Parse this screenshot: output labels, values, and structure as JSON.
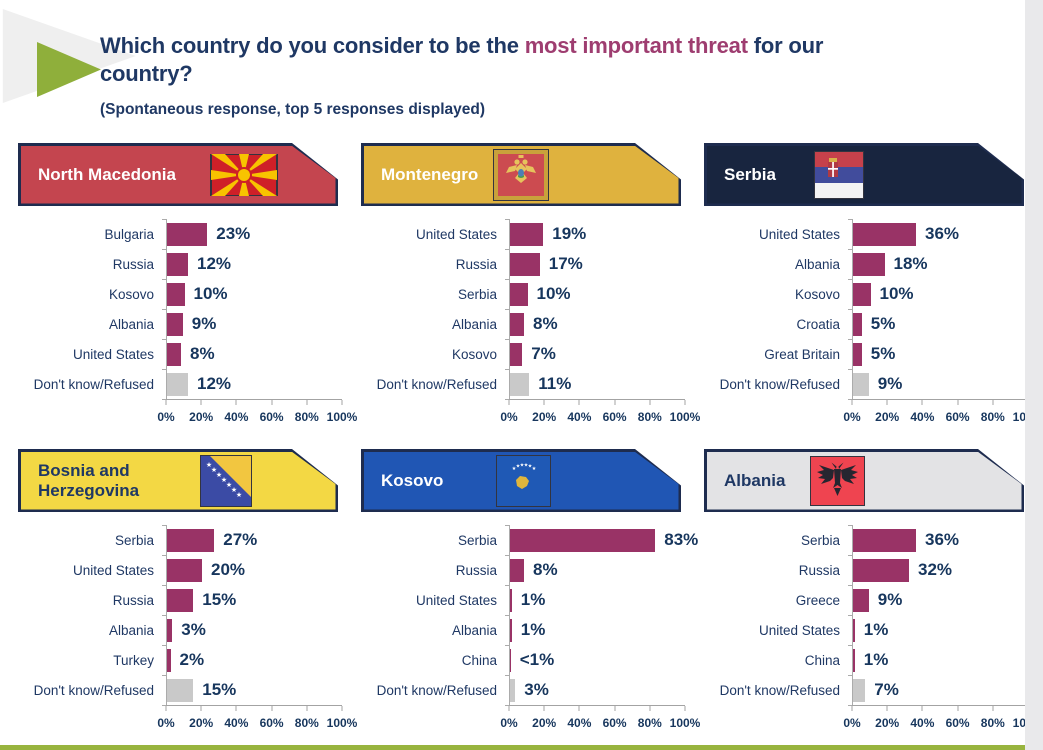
{
  "header": {
    "title_prefix": "Which country do you consider to be the ",
    "title_highlight": "most important threat",
    "title_suffix": " for our",
    "title_line2": "country?",
    "subtitle": "(Spontaneous response, top 5 responses displayed)"
  },
  "axis": {
    "tick_labels": [
      "0%",
      "20%",
      "40%",
      "60%",
      "80%",
      "100%"
    ],
    "min": 0,
    "max": 100
  },
  "colors": {
    "title_navy": "#1f3864",
    "highlight_purple": "#9e3d70",
    "bar_purple": "#993366",
    "dk_gray": "#c9c9c9",
    "axis_gray": "#a3a3a3",
    "banner_border_navy": "#1e2c4f",
    "accent_green": "#8faf3b"
  },
  "chart_data": [
    {
      "type": "bar",
      "title": "North Macedonia",
      "flag": "mk",
      "flag_icon": "north-macedonia-flag-icon",
      "banner_bg": "#c4454f",
      "banner_text": "#ffffff",
      "categories": [
        "Bulgaria",
        "Russia",
        "Kosovo",
        "Albania",
        "United States",
        "Don't know/Refused"
      ],
      "values": [
        23,
        12,
        10,
        9,
        8,
        12
      ],
      "value_labels": [
        "23%",
        "12%",
        "10%",
        "9%",
        "8%",
        "12%"
      ],
      "xlim": [
        0,
        100
      ]
    },
    {
      "type": "bar",
      "title": "Montenegro",
      "flag": "me",
      "flag_icon": "montenegro-flag-icon",
      "banner_bg": "#dfb23e",
      "banner_text": "#ffffff",
      "categories": [
        "United States",
        "Russia",
        "Serbia",
        "Albania",
        "Kosovo",
        "Don't know/Refused"
      ],
      "values": [
        19,
        17,
        10,
        8,
        7,
        11
      ],
      "value_labels": [
        "19%",
        "17%",
        "10%",
        "8%",
        "7%",
        "11%"
      ],
      "xlim": [
        0,
        100
      ]
    },
    {
      "type": "bar",
      "title": "Serbia",
      "flag": "rs",
      "flag_icon": "serbia-flag-icon",
      "banner_bg": "#18253f",
      "banner_text": "#ffffff",
      "categories": [
        "United States",
        "Albania",
        "Kosovo",
        "Croatia",
        "Great Britain",
        "Don't know/Refused"
      ],
      "values": [
        36,
        18,
        10,
        5,
        5,
        9
      ],
      "value_labels": [
        "36%",
        "18%",
        "10%",
        "5%",
        "5%",
        "9%"
      ],
      "xlim": [
        0,
        100
      ]
    },
    {
      "type": "bar",
      "title": "Bosnia and Herzegovina",
      "flag": "ba",
      "flag_icon": "bosnia-herzegovina-flag-icon",
      "banner_bg": "#f3d844",
      "banner_text": "#1f3864",
      "categories": [
        "Serbia",
        "United States",
        "Russia",
        "Albania",
        "Turkey",
        "Don't know/Refused"
      ],
      "values": [
        27,
        20,
        15,
        3,
        2,
        15
      ],
      "value_labels": [
        "27%",
        "20%",
        "15%",
        "3%",
        "2%",
        "15%"
      ],
      "xlim": [
        0,
        100
      ]
    },
    {
      "type": "bar",
      "title": "Kosovo",
      "flag": "xk",
      "flag_icon": "kosovo-flag-icon",
      "banner_bg": "#2056b4",
      "banner_text": "#ffffff",
      "categories": [
        "Serbia",
        "Russia",
        "United States",
        "Albania",
        "China",
        "Don't know/Refused"
      ],
      "values": [
        83,
        8,
        1,
        1,
        0.4,
        3
      ],
      "value_labels": [
        "83%",
        "8%",
        "1%",
        "1%",
        "<1%",
        "3%"
      ],
      "xlim": [
        0,
        100
      ]
    },
    {
      "type": "bar",
      "title": "Albania",
      "flag": "al",
      "flag_icon": "albania-flag-icon",
      "banner_bg": "#e3e3e5",
      "banner_text": "#1f3864",
      "categories": [
        "Serbia",
        "Russia",
        "Greece",
        "United States",
        "China",
        "Don't know/Refused"
      ],
      "values": [
        36,
        32,
        9,
        1,
        1,
        7
      ],
      "value_labels": [
        "36%",
        "32%",
        "9%",
        "1%",
        "1%",
        "7%"
      ],
      "xlim": [
        0,
        100
      ]
    }
  ]
}
